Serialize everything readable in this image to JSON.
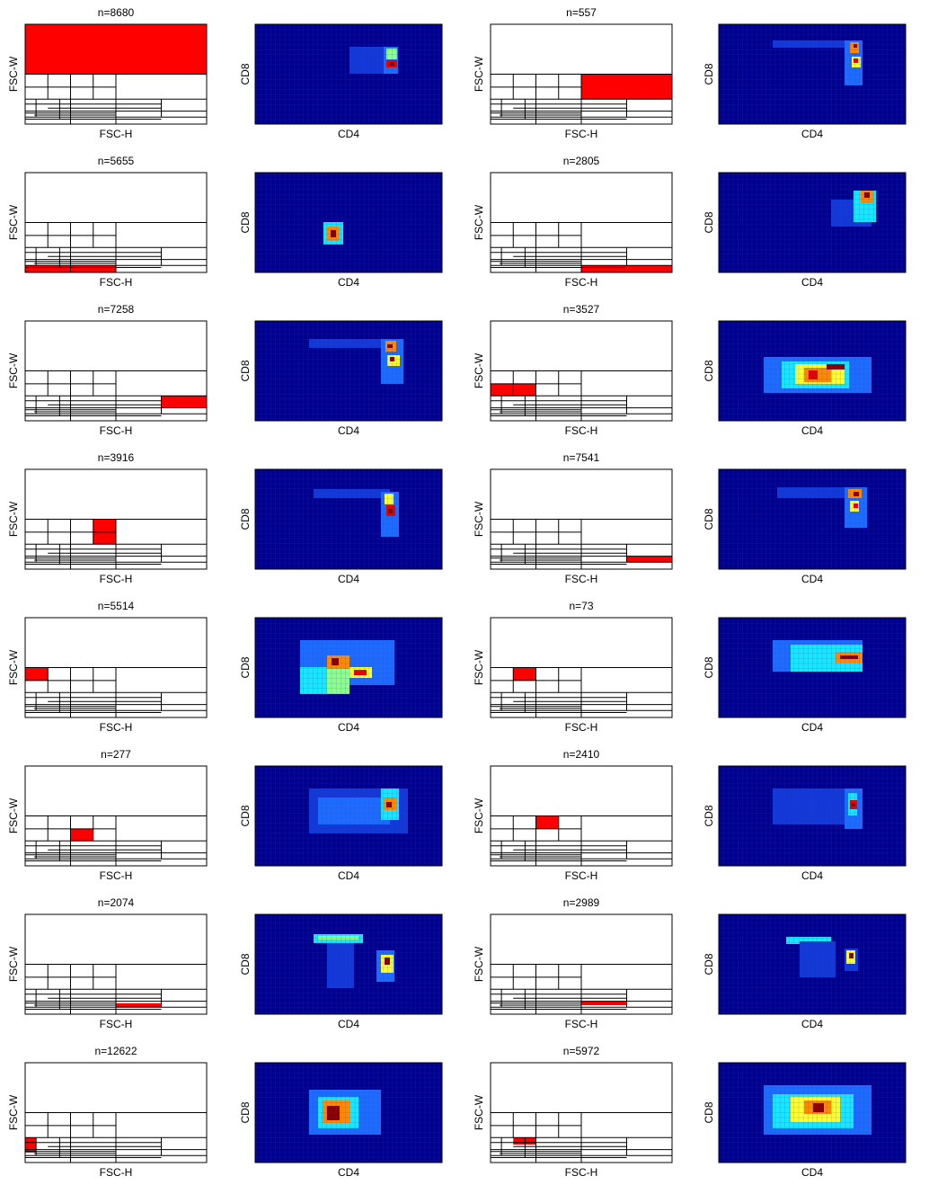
{
  "chart_data": [
    {
      "type": "partition",
      "title": "n=8680",
      "xlabel": "FSC-H",
      "ylabel": "FSC-W"
    },
    {
      "type": "heatmap",
      "xlabel": "CD4",
      "ylabel": "CD8"
    },
    {
      "type": "partition",
      "title": "n=557",
      "xlabel": "FSC-H",
      "ylabel": "FSC-W"
    },
    {
      "type": "heatmap",
      "xlabel": "CD4",
      "ylabel": "CD8"
    },
    {
      "type": "partition",
      "title": "n=5655",
      "xlabel": "FSC-H",
      "ylabel": "FSC-W"
    },
    {
      "type": "heatmap",
      "xlabel": "CD4",
      "ylabel": "CD8"
    },
    {
      "type": "partition",
      "title": "n=2805",
      "xlabel": "FSC-H",
      "ylabel": "FSC-W"
    },
    {
      "type": "heatmap",
      "xlabel": "CD4",
      "ylabel": "CD8"
    },
    {
      "type": "partition",
      "title": "n=7258",
      "xlabel": "FSC-H",
      "ylabel": "FSC-W"
    },
    {
      "type": "heatmap",
      "xlabel": "CD4",
      "ylabel": "CD8"
    },
    {
      "type": "partition",
      "title": "n=3527",
      "xlabel": "FSC-H",
      "ylabel": "FSC-W"
    },
    {
      "type": "heatmap",
      "xlabel": "CD4",
      "ylabel": "CD8"
    },
    {
      "type": "partition",
      "title": "n=3916",
      "xlabel": "FSC-H",
      "ylabel": "FSC-W"
    },
    {
      "type": "heatmap",
      "xlabel": "CD4",
      "ylabel": "CD8"
    },
    {
      "type": "partition",
      "title": "n=7541",
      "xlabel": "FSC-H",
      "ylabel": "FSC-W"
    },
    {
      "type": "heatmap",
      "xlabel": "CD4",
      "ylabel": "CD8"
    },
    {
      "type": "partition",
      "title": "n=5514",
      "xlabel": "FSC-H",
      "ylabel": "FSC-W"
    },
    {
      "type": "heatmap",
      "xlabel": "CD4",
      "ylabel": "CD8"
    },
    {
      "type": "partition",
      "title": "n=73",
      "xlabel": "FSC-H",
      "ylabel": "FSC-W"
    },
    {
      "type": "heatmap",
      "xlabel": "CD4",
      "ylabel": "CD8"
    },
    {
      "type": "partition",
      "title": "n=277",
      "xlabel": "FSC-H",
      "ylabel": "FSC-W"
    },
    {
      "type": "heatmap",
      "xlabel": "CD4",
      "ylabel": "CD8"
    },
    {
      "type": "partition",
      "title": "n=2410",
      "xlabel": "FSC-H",
      "ylabel": "FSC-W"
    },
    {
      "type": "heatmap",
      "xlabel": "CD4",
      "ylabel": "CD8"
    },
    {
      "type": "partition",
      "title": "n=2074",
      "xlabel": "FSC-H",
      "ylabel": "FSC-W"
    },
    {
      "type": "heatmap",
      "xlabel": "CD4",
      "ylabel": "CD8"
    },
    {
      "type": "partition",
      "title": "n=2989",
      "xlabel": "FSC-H",
      "ylabel": "FSC-W"
    },
    {
      "type": "heatmap",
      "xlabel": "CD4",
      "ylabel": "CD8"
    },
    {
      "type": "partition",
      "title": "n=12622",
      "xlabel": "FSC-H",
      "ylabel": "FSC-W"
    },
    {
      "type": "heatmap",
      "xlabel": "CD4",
      "ylabel": "CD8"
    },
    {
      "type": "partition",
      "title": "n=5972",
      "xlabel": "FSC-H",
      "ylabel": "FSC-W"
    },
    {
      "type": "heatmap",
      "xlabel": "CD4",
      "ylabel": "CD8"
    }
  ]
}
